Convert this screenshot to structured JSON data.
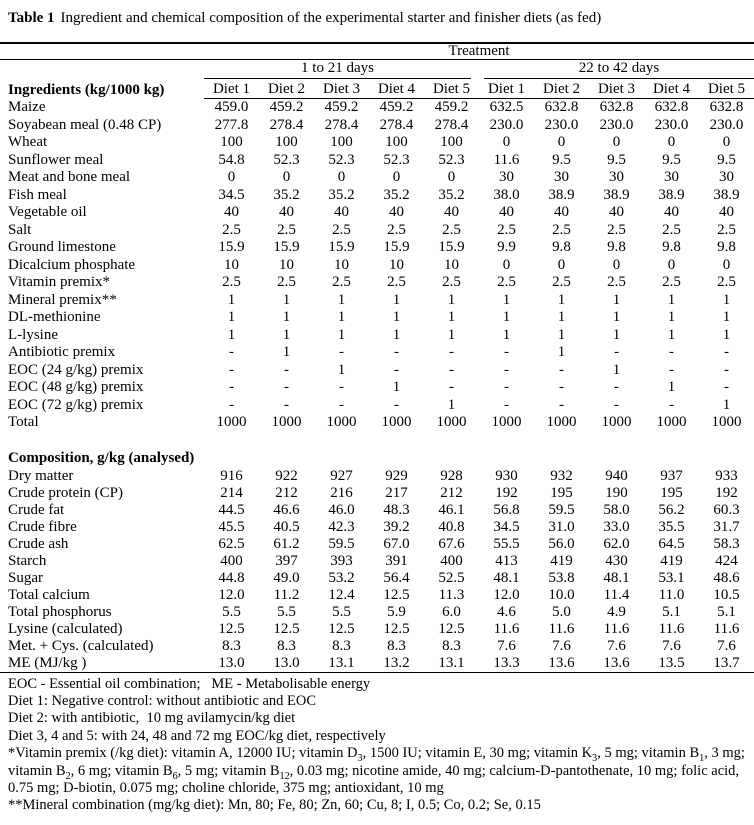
{
  "title": {
    "label": "Table 1",
    "text": "Ingredient and chemical composition of the experimental starter and finisher diets (as fed)"
  },
  "table": {
    "treatment_label": "Treatment",
    "group_headers": [
      "1 to 21 days",
      "22 to 42 days"
    ],
    "row_header": "Ingredients (kg/1000 kg)",
    "diet_headers": [
      "Diet 1",
      "Diet 2",
      "Diet 3",
      "Diet 4",
      "Diet 5",
      "Diet 1",
      "Diet 2",
      "Diet 3",
      "Diet 4",
      "Diet 5"
    ],
    "ingredients": [
      {
        "label": "Maize",
        "values": [
          "459.0",
          "459.2",
          "459.2",
          "459.2",
          "459.2",
          "632.5",
          "632.8",
          "632.8",
          "632.8",
          "632.8"
        ]
      },
      {
        "label": "Soyabean meal (0.48 CP)",
        "values": [
          "277.8",
          "278.4",
          "278.4",
          "278.4",
          "278.4",
          "230.0",
          "230.0",
          "230.0",
          "230.0",
          "230.0"
        ]
      },
      {
        "label": "Wheat",
        "values": [
          "100",
          "100",
          "100",
          "100",
          "100",
          "0",
          "0",
          "0",
          "0",
          "0"
        ]
      },
      {
        "label": "Sunflower meal",
        "values": [
          "54.8",
          "52.3",
          "52.3",
          "52.3",
          "52.3",
          "11.6",
          "9.5",
          "9.5",
          "9.5",
          "9.5"
        ]
      },
      {
        "label": "Meat and bone meal",
        "values": [
          "0",
          "0",
          "0",
          "0",
          "0",
          "30",
          "30",
          "30",
          "30",
          "30"
        ]
      },
      {
        "label": "Fish meal",
        "values": [
          "34.5",
          "35.2",
          "35.2",
          "35.2",
          "35.2",
          "38.0",
          "38.9",
          "38.9",
          "38.9",
          "38.9"
        ]
      },
      {
        "label": "Vegetable oil",
        "values": [
          "40",
          "40",
          "40",
          "40",
          "40",
          "40",
          "40",
          "40",
          "40",
          "40"
        ]
      },
      {
        "label": "Salt",
        "values": [
          "2.5",
          "2.5",
          "2.5",
          "2.5",
          "2.5",
          "2.5",
          "2.5",
          "2.5",
          "2.5",
          "2.5"
        ]
      },
      {
        "label": "Ground limestone",
        "values": [
          "15.9",
          "15.9",
          "15.9",
          "15.9",
          "15.9",
          "9.9",
          "9.8",
          "9.8",
          "9.8",
          "9.8"
        ]
      },
      {
        "label": "Dicalcium phosphate",
        "values": [
          "10",
          "10",
          "10",
          "10",
          "10",
          "0",
          "0",
          "0",
          "0",
          "0"
        ]
      },
      {
        "label": "Vitamin premix*",
        "values": [
          "2.5",
          "2.5",
          "2.5",
          "2.5",
          "2.5",
          "2.5",
          "2.5",
          "2.5",
          "2.5",
          "2.5"
        ]
      },
      {
        "label": "Mineral premix**",
        "values": [
          "1",
          "1",
          "1",
          "1",
          "1",
          "1",
          "1",
          "1",
          "1",
          "1"
        ]
      },
      {
        "label": "DL-methionine",
        "values": [
          "1",
          "1",
          "1",
          "1",
          "1",
          "1",
          "1",
          "1",
          "1",
          "1"
        ]
      },
      {
        "label": "L-lysine",
        "values": [
          "1",
          "1",
          "1",
          "1",
          "1",
          "1",
          "1",
          "1",
          "1",
          "1"
        ]
      },
      {
        "label": "Antibiotic premix",
        "values": [
          "-",
          "1",
          "-",
          "-",
          "-",
          "-",
          "1",
          "-",
          "-",
          "-"
        ]
      },
      {
        "label": "EOC (24 g/kg) premix",
        "values": [
          "-",
          "-",
          "1",
          "-",
          "-",
          "-",
          "-",
          "1",
          "-",
          "-"
        ]
      },
      {
        "label": "EOC (48 g/kg) premix",
        "values": [
          "-",
          "-",
          "-",
          "1",
          "-",
          "-",
          "-",
          "-",
          "1",
          "-"
        ]
      },
      {
        "label": "EOC (72 g/kg) premix",
        "values": [
          "-",
          "-",
          "-",
          "-",
          "1",
          "-",
          "-",
          "-",
          "-",
          "1"
        ]
      },
      {
        "label": "Total",
        "values": [
          "1000",
          "1000",
          "1000",
          "1000",
          "1000",
          "1000",
          "1000",
          "1000",
          "1000",
          "1000"
        ]
      }
    ],
    "composition_header": "Composition, g/kg (analysed)",
    "composition": [
      {
        "label": "Dry matter",
        "values": [
          "916",
          "922",
          "927",
          "929",
          "928",
          "930",
          "932",
          "940",
          "937",
          "933"
        ]
      },
      {
        "label": "Crude protein (CP)",
        "values": [
          "214",
          "212",
          "216",
          "217",
          "212",
          "192",
          "195",
          "190",
          "195",
          "192"
        ]
      },
      {
        "label": "Crude fat",
        "values": [
          "44.5",
          "46.6",
          "46.0",
          "48.3",
          "46.1",
          "56.8",
          "59.5",
          "58.0",
          "56.2",
          "60.3"
        ]
      },
      {
        "label": "Crude fibre",
        "values": [
          "45.5",
          "40.5",
          "42.3",
          "39.2",
          "40.8",
          "34.5",
          "31.0",
          "33.0",
          "35.5",
          "31.7"
        ]
      },
      {
        "label": "Crude ash",
        "values": [
          "62.5",
          "61.2",
          "59.5",
          "67.0",
          "67.6",
          "55.5",
          "56.0",
          "62.0",
          "64.5",
          "58.3"
        ]
      },
      {
        "label": "Starch",
        "values": [
          "400",
          "397",
          "393",
          "391",
          "400",
          "413",
          "419",
          "430",
          "419",
          "424"
        ]
      },
      {
        "label": "Sugar",
        "values": [
          "44.8",
          "49.0",
          "53.2",
          "56.4",
          "52.5",
          "48.1",
          "53.8",
          "48.1",
          "53.1",
          "48.6"
        ]
      },
      {
        "label": "Total calcium",
        "values": [
          "12.0",
          "11.2",
          "12.4",
          "12.5",
          "11.3",
          "12.0",
          "10.0",
          "11.4",
          "11.0",
          "10.5"
        ]
      },
      {
        "label": "Total phosphorus",
        "values": [
          "5.5",
          "5.5",
          "5.5",
          "5.9",
          "6.0",
          "4.6",
          "5.0",
          "4.9",
          "5.1",
          "5.1"
        ]
      },
      {
        "label": "Lysine (calculated)",
        "values": [
          "12.5",
          "12.5",
          "12.5",
          "12.5",
          "12.5",
          "11.6",
          "11.6",
          "11.6",
          "11.6",
          "11.6"
        ]
      },
      {
        "label": "Met. + Cys. (calculated)",
        "values": [
          "8.3",
          "8.3",
          "8.3",
          "8.3",
          "8.3",
          "7.6",
          "7.6",
          "7.6",
          "7.6",
          "7.6"
        ]
      },
      {
        "label": "ME (MJ/kg )",
        "values": [
          "13.0",
          "13.0",
          "13.1",
          "13.2",
          "13.1",
          "13.3",
          "13.6",
          "13.6",
          "13.5",
          "13.7"
        ]
      }
    ]
  },
  "footnotes": {
    "abbrev": "EOC - Essential oil combination;   ME - Metabolisable energy",
    "diet1": "Diet 1: Negative control: without antibiotic and EOC",
    "diet2": "Diet 2: with antibiotic,  10 mg avilamycin/kg diet",
    "diet345": "Diet 3, 4 and 5: with 24, 48 and 72 mg EOC/kg diet, respectively",
    "vitamin_segments": [
      [
        "t",
        "*Vitamin premix (/kg diet): vitamin A, 12000 IU; vitamin D"
      ],
      [
        "sub",
        "3"
      ],
      [
        "t",
        ", 1500 IU; vitamin E, 30 mg; vitamin K"
      ],
      [
        "sub",
        "3"
      ],
      [
        "t",
        ", 5 mg; vitamin B"
      ],
      [
        "sub",
        "1"
      ],
      [
        "t",
        ", 3 mg; vitamin B"
      ],
      [
        "sub",
        "2"
      ],
      [
        "t",
        ", 6 mg; vitamin B"
      ],
      [
        "sub",
        "6"
      ],
      [
        "t",
        ", 5 mg; vitamin B"
      ],
      [
        "sub",
        "12"
      ],
      [
        "t",
        ", 0.03 mg; nicotine amide, 40 mg; calcium-D-pantothenate, 10 mg; folic acid, 0.75 mg; D-biotin, 0.075 mg; choline chloride, 375 mg; antioxidant, 10 mg"
      ]
    ],
    "mineral": "**Mineral combination (mg/kg diet): Mn, 80; Fe, 80; Zn, 60; Cu, 8; I, 0.5; Co, 0.2; Se, 0.15"
  }
}
